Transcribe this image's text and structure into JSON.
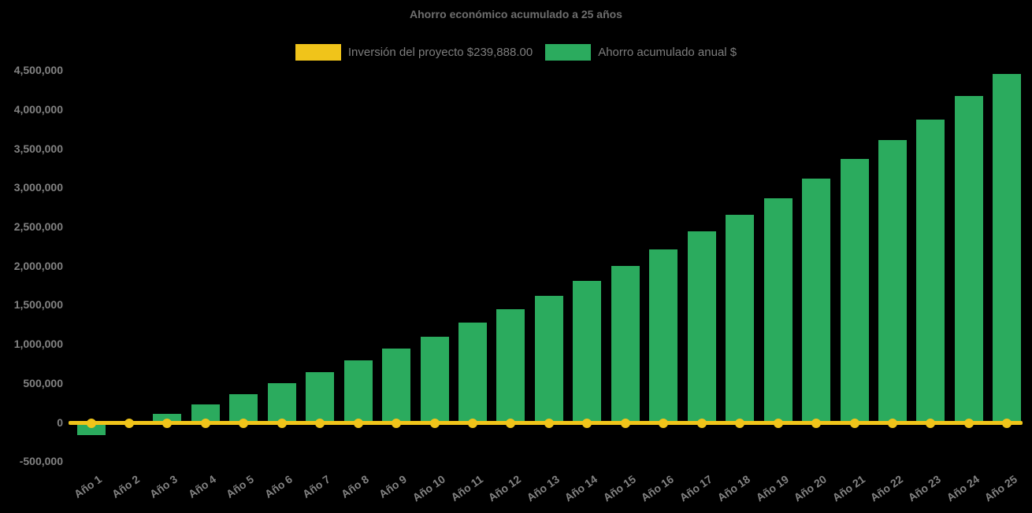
{
  "title": "Ahorro económico acumulado a 25 años",
  "colors": {
    "background": "#000000",
    "investment_yellow": "#F0C41A",
    "savings_green": "#2BAB5E",
    "text_gray": "#7d7d7d"
  },
  "legend": [
    {
      "label": "Inversión del proyecto $239,888.00",
      "color": "#F0C41A"
    },
    {
      "label": "Ahorro acumulado anual $",
      "color": "#2BAB5E"
    }
  ],
  "y_axis": {
    "tick_labels": [
      "4,500,000",
      "4,000,000",
      "3,500,000",
      "3,000,000",
      "2,500,000",
      "2,000,000",
      "1,500,000",
      "1,000,000",
      "500,000",
      "0",
      "-500,000"
    ]
  },
  "chart_data": {
    "type": "bar",
    "title": "Ahorro económico acumulado a 25 años",
    "categories": [
      "Año 1",
      "Año 2",
      "Año 3",
      "Año 4",
      "Año 5",
      "Año 6",
      "Año 7",
      "Año 8",
      "Año 9",
      "Año 10",
      "Año 11",
      "Año 12",
      "Año 13",
      "Año 14",
      "Año 15",
      "Año 16",
      "Año 17",
      "Año 18",
      "Año 19",
      "Año 20",
      "Año 21",
      "Año 22",
      "Año 23",
      "Año 24",
      "Año 25"
    ],
    "series": [
      {
        "name": "Inversión del proyecto $239,888.00",
        "type": "line",
        "color": "#F0C41A",
        "marker": "circle",
        "values": [
          0,
          0,
          0,
          0,
          0,
          0,
          0,
          0,
          0,
          0,
          0,
          0,
          0,
          0,
          0,
          0,
          0,
          0,
          0,
          0,
          0,
          0,
          0,
          0,
          0
        ]
      },
      {
        "name": "Ahorro acumulado anual $",
        "type": "bar",
        "color": "#2BAB5E",
        "values": [
          -165000,
          0,
          105000,
          230000,
          355000,
          495000,
          640000,
          790000,
          940000,
          1090000,
          1270000,
          1445000,
          1615000,
          1805000,
          2000000,
          2210000,
          2440000,
          2650000,
          2860000,
          3110000,
          3365000,
          3605000,
          3870000,
          4170000,
          4455000
        ]
      }
    ],
    "ylim": [
      -500000,
      4500000
    ],
    "y_ticks": [
      4500000,
      4000000,
      3500000,
      3000000,
      2500000,
      2000000,
      1500000,
      1000000,
      500000,
      0,
      -500000
    ],
    "grid": false,
    "legend_position": "top",
    "xlabel": "",
    "ylabel": ""
  }
}
